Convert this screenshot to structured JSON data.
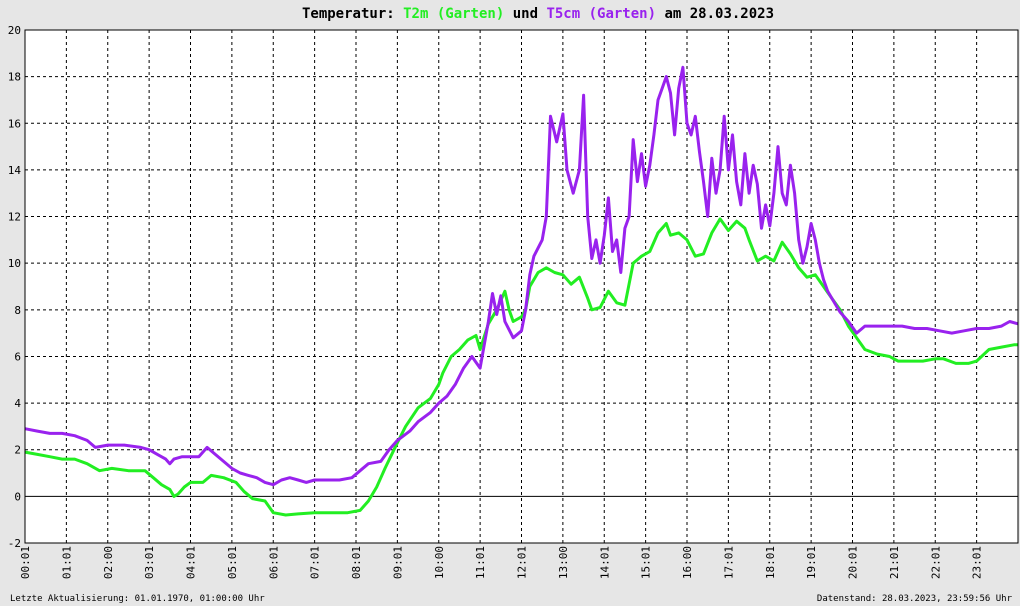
{
  "chart_data": {
    "type": "line",
    "title": {
      "prefix": "Temperatur: ",
      "series1": "T2m (Garten)",
      "middle": " und ",
      "series2": "T5cm (Garten)",
      "suffix": " am 28.03.2023"
    },
    "ylim": [
      -2,
      20
    ],
    "yticks": [
      -2,
      0,
      2,
      4,
      6,
      8,
      10,
      12,
      14,
      16,
      18,
      20
    ],
    "xlim_hours": [
      0,
      24
    ],
    "xticks": [
      "00:01",
      "01:01",
      "02:00",
      "03:01",
      "04:01",
      "05:01",
      "06:01",
      "07:01",
      "08:01",
      "09:01",
      "10:00",
      "11:01",
      "12:01",
      "13:00",
      "14:01",
      "15:01",
      "16:00",
      "17:01",
      "18:01",
      "19:01",
      "20:01",
      "21:01",
      "22:01",
      "23:01"
    ],
    "grid": true,
    "series": [
      {
        "name": "T2m (Garten)",
        "color": "#22ee22",
        "points": [
          [
            0.0,
            1.9
          ],
          [
            0.3,
            1.8
          ],
          [
            0.6,
            1.7
          ],
          [
            0.9,
            1.6
          ],
          [
            1.2,
            1.6
          ],
          [
            1.5,
            1.4
          ],
          [
            1.8,
            1.1
          ],
          [
            2.1,
            1.2
          ],
          [
            2.5,
            1.1
          ],
          [
            2.9,
            1.1
          ],
          [
            3.1,
            0.8
          ],
          [
            3.3,
            0.5
          ],
          [
            3.5,
            0.3
          ],
          [
            3.6,
            0.0
          ],
          [
            3.7,
            0.1
          ],
          [
            3.85,
            0.4
          ],
          [
            4.0,
            0.6
          ],
          [
            4.3,
            0.6
          ],
          [
            4.5,
            0.9
          ],
          [
            4.8,
            0.8
          ],
          [
            5.1,
            0.6
          ],
          [
            5.3,
            0.2
          ],
          [
            5.5,
            -0.1
          ],
          [
            5.8,
            -0.2
          ],
          [
            6.0,
            -0.7
          ],
          [
            6.3,
            -0.8
          ],
          [
            6.6,
            -0.75
          ],
          [
            7.0,
            -0.7
          ],
          [
            7.5,
            -0.7
          ],
          [
            7.8,
            -0.7
          ],
          [
            8.1,
            -0.6
          ],
          [
            8.3,
            -0.2
          ],
          [
            8.5,
            0.4
          ],
          [
            8.7,
            1.2
          ],
          [
            9.0,
            2.3
          ],
          [
            9.2,
            3.0
          ],
          [
            9.5,
            3.8
          ],
          [
            9.8,
            4.2
          ],
          [
            10.0,
            4.8
          ],
          [
            10.1,
            5.3
          ],
          [
            10.3,
            6.0
          ],
          [
            10.5,
            6.3
          ],
          [
            10.7,
            6.7
          ],
          [
            10.9,
            6.9
          ],
          [
            11.0,
            6.3
          ],
          [
            11.2,
            7.4
          ],
          [
            11.4,
            8.0
          ],
          [
            11.6,
            8.8
          ],
          [
            11.7,
            8.0
          ],
          [
            11.8,
            7.5
          ],
          [
            12.0,
            7.7
          ],
          [
            12.1,
            8.0
          ],
          [
            12.2,
            9.0
          ],
          [
            12.4,
            9.6
          ],
          [
            12.6,
            9.8
          ],
          [
            12.8,
            9.6
          ],
          [
            13.0,
            9.5
          ],
          [
            13.2,
            9.1
          ],
          [
            13.4,
            9.4
          ],
          [
            13.6,
            8.5
          ],
          [
            13.7,
            8.0
          ],
          [
            13.9,
            8.1
          ],
          [
            14.1,
            8.8
          ],
          [
            14.3,
            8.3
          ],
          [
            14.5,
            8.2
          ],
          [
            14.7,
            10.0
          ],
          [
            14.9,
            10.3
          ],
          [
            15.1,
            10.5
          ],
          [
            15.3,
            11.3
          ],
          [
            15.5,
            11.7
          ],
          [
            15.6,
            11.2
          ],
          [
            15.8,
            11.3
          ],
          [
            16.0,
            11.0
          ],
          [
            16.2,
            10.3
          ],
          [
            16.4,
            10.4
          ],
          [
            16.6,
            11.3
          ],
          [
            16.8,
            11.9
          ],
          [
            17.0,
            11.4
          ],
          [
            17.2,
            11.8
          ],
          [
            17.4,
            11.5
          ],
          [
            17.5,
            11.0
          ],
          [
            17.7,
            10.1
          ],
          [
            17.9,
            10.3
          ],
          [
            18.1,
            10.1
          ],
          [
            18.3,
            10.9
          ],
          [
            18.5,
            10.4
          ],
          [
            18.7,
            9.8
          ],
          [
            18.9,
            9.4
          ],
          [
            19.1,
            9.5
          ],
          [
            19.3,
            9.0
          ],
          [
            19.5,
            8.5
          ],
          [
            19.7,
            8.0
          ],
          [
            19.9,
            7.3
          ],
          [
            20.1,
            6.8
          ],
          [
            20.3,
            6.3
          ],
          [
            20.6,
            6.1
          ],
          [
            20.9,
            6.0
          ],
          [
            21.1,
            5.8
          ],
          [
            21.4,
            5.8
          ],
          [
            21.7,
            5.8
          ],
          [
            22.0,
            5.9
          ],
          [
            22.2,
            5.9
          ],
          [
            22.5,
            5.7
          ],
          [
            22.8,
            5.7
          ],
          [
            23.0,
            5.8
          ],
          [
            23.3,
            6.3
          ],
          [
            23.6,
            6.4
          ],
          [
            23.9,
            6.5
          ],
          [
            24.0,
            6.5
          ]
        ]
      },
      {
        "name": "T5cm (Garten)",
        "color": "#9922ee",
        "points": [
          [
            0.0,
            2.9
          ],
          [
            0.3,
            2.8
          ],
          [
            0.6,
            2.7
          ],
          [
            0.9,
            2.7
          ],
          [
            1.2,
            2.6
          ],
          [
            1.5,
            2.4
          ],
          [
            1.7,
            2.1
          ],
          [
            2.0,
            2.2
          ],
          [
            2.4,
            2.2
          ],
          [
            2.8,
            2.1
          ],
          [
            3.0,
            2.0
          ],
          [
            3.2,
            1.8
          ],
          [
            3.4,
            1.6
          ],
          [
            3.5,
            1.4
          ],
          [
            3.6,
            1.6
          ],
          [
            3.8,
            1.7
          ],
          [
            4.0,
            1.7
          ],
          [
            4.2,
            1.7
          ],
          [
            4.4,
            2.1
          ],
          [
            4.6,
            1.8
          ],
          [
            4.8,
            1.5
          ],
          [
            5.0,
            1.2
          ],
          [
            5.2,
            1.0
          ],
          [
            5.4,
            0.9
          ],
          [
            5.6,
            0.8
          ],
          [
            5.8,
            0.6
          ],
          [
            6.0,
            0.5
          ],
          [
            6.2,
            0.7
          ],
          [
            6.4,
            0.8
          ],
          [
            6.6,
            0.7
          ],
          [
            6.8,
            0.6
          ],
          [
            7.0,
            0.7
          ],
          [
            7.3,
            0.7
          ],
          [
            7.6,
            0.7
          ],
          [
            7.9,
            0.8
          ],
          [
            8.1,
            1.1
          ],
          [
            8.3,
            1.4
          ],
          [
            8.6,
            1.5
          ],
          [
            8.8,
            2.0
          ],
          [
            9.0,
            2.4
          ],
          [
            9.3,
            2.8
          ],
          [
            9.5,
            3.2
          ],
          [
            9.8,
            3.6
          ],
          [
            10.0,
            4.0
          ],
          [
            10.2,
            4.3
          ],
          [
            10.4,
            4.8
          ],
          [
            10.6,
            5.5
          ],
          [
            10.8,
            6.0
          ],
          [
            11.0,
            5.5
          ],
          [
            11.2,
            7.5
          ],
          [
            11.3,
            8.7
          ],
          [
            11.4,
            7.8
          ],
          [
            11.5,
            8.6
          ],
          [
            11.6,
            7.5
          ],
          [
            11.8,
            6.8
          ],
          [
            12.0,
            7.1
          ],
          [
            12.1,
            8.0
          ],
          [
            12.2,
            9.5
          ],
          [
            12.3,
            10.3
          ],
          [
            12.5,
            11.0
          ],
          [
            12.6,
            12.0
          ],
          [
            12.7,
            16.3
          ],
          [
            12.85,
            15.2
          ],
          [
            13.0,
            16.4
          ],
          [
            13.1,
            14.0
          ],
          [
            13.25,
            13.0
          ],
          [
            13.4,
            14.0
          ],
          [
            13.5,
            17.2
          ],
          [
            13.6,
            12.0
          ],
          [
            13.7,
            10.2
          ],
          [
            13.8,
            11.0
          ],
          [
            13.9,
            10.0
          ],
          [
            14.0,
            11.2
          ],
          [
            14.1,
            12.8
          ],
          [
            14.2,
            10.5
          ],
          [
            14.3,
            11.0
          ],
          [
            14.4,
            9.6
          ],
          [
            14.5,
            11.5
          ],
          [
            14.6,
            12.0
          ],
          [
            14.7,
            15.3
          ],
          [
            14.8,
            13.5
          ],
          [
            14.9,
            14.7
          ],
          [
            15.0,
            13.3
          ],
          [
            15.1,
            14.2
          ],
          [
            15.2,
            15.5
          ],
          [
            15.3,
            17.0
          ],
          [
            15.4,
            17.5
          ],
          [
            15.5,
            18.0
          ],
          [
            15.6,
            17.3
          ],
          [
            15.7,
            15.5
          ],
          [
            15.8,
            17.5
          ],
          [
            15.9,
            18.4
          ],
          [
            16.0,
            16.0
          ],
          [
            16.1,
            15.5
          ],
          [
            16.2,
            16.3
          ],
          [
            16.3,
            14.8
          ],
          [
            16.4,
            13.5
          ],
          [
            16.5,
            12.0
          ],
          [
            16.6,
            14.5
          ],
          [
            16.7,
            13.0
          ],
          [
            16.8,
            14.0
          ],
          [
            16.9,
            16.3
          ],
          [
            17.0,
            14.0
          ],
          [
            17.1,
            15.5
          ],
          [
            17.2,
            13.5
          ],
          [
            17.3,
            12.5
          ],
          [
            17.4,
            14.7
          ],
          [
            17.5,
            13.0
          ],
          [
            17.6,
            14.2
          ],
          [
            17.7,
            13.4
          ],
          [
            17.8,
            11.5
          ],
          [
            17.9,
            12.5
          ],
          [
            18.0,
            11.6
          ],
          [
            18.1,
            13.0
          ],
          [
            18.2,
            15.0
          ],
          [
            18.3,
            13.0
          ],
          [
            18.4,
            12.5
          ],
          [
            18.5,
            14.2
          ],
          [
            18.6,
            13.0
          ],
          [
            18.7,
            11.0
          ],
          [
            18.8,
            10.0
          ],
          [
            18.9,
            10.7
          ],
          [
            19.0,
            11.7
          ],
          [
            19.1,
            11.0
          ],
          [
            19.2,
            10.0
          ],
          [
            19.3,
            9.3
          ],
          [
            19.4,
            8.8
          ],
          [
            19.5,
            8.5
          ],
          [
            19.7,
            7.9
          ],
          [
            19.9,
            7.5
          ],
          [
            20.1,
            7.0
          ],
          [
            20.3,
            7.3
          ],
          [
            20.6,
            7.3
          ],
          [
            20.9,
            7.3
          ],
          [
            21.2,
            7.3
          ],
          [
            21.5,
            7.2
          ],
          [
            21.8,
            7.2
          ],
          [
            22.1,
            7.1
          ],
          [
            22.4,
            7.0
          ],
          [
            22.7,
            7.1
          ],
          [
            23.0,
            7.2
          ],
          [
            23.3,
            7.2
          ],
          [
            23.6,
            7.3
          ],
          [
            23.8,
            7.5
          ],
          [
            24.0,
            7.4
          ]
        ]
      }
    ]
  },
  "footer": {
    "left": "Letzte Aktualisierung: 01.01.1970, 01:00:00 Uhr",
    "right": "Datenstand: 28.03.2023, 23:59:56 Uhr"
  }
}
